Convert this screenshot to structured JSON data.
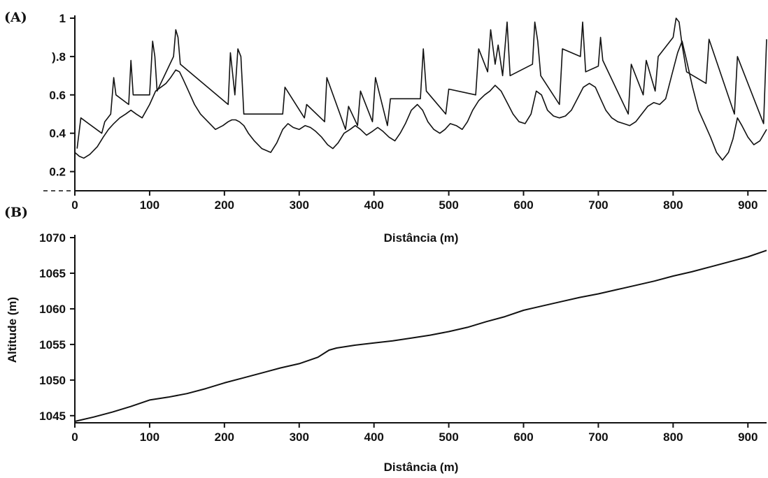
{
  "chart_data": [
    {
      "panel_label": "(A)",
      "type": "line",
      "xlabel": "Distância (m)",
      "ylabel": "",
      "xlim": [
        0,
        925
      ],
      "ylim": [
        0.1,
        1.0
      ],
      "x_ticks": [
        0,
        100,
        200,
        300,
        400,
        500,
        600,
        700,
        800,
        900
      ],
      "y_ticks": [
        0.2,
        0.4,
        0.6,
        0.8,
        1.0
      ],
      "y_tick_labels": [
        "0.2",
        "0.4",
        "0.6",
        ").8",
        "1"
      ],
      "grid": false,
      "series": [
        {
          "color": "#111111",
          "x": [
            0,
            3,
            6,
            12,
            20,
            30,
            38,
            45,
            52,
            60,
            68,
            75,
            82,
            90,
            100,
            108,
            115,
            122,
            128,
            135,
            140,
            145,
            152,
            160,
            168,
            178,
            188,
            198,
            205,
            210,
            215,
            220,
            226,
            232,
            240,
            250,
            262,
            270,
            278,
            285,
            292,
            300,
            308,
            315,
            322,
            330,
            338,
            345,
            352,
            360,
            368,
            375,
            382,
            390,
            398,
            405,
            412,
            420,
            428,
            435,
            442,
            450,
            458,
            465,
            472,
            480,
            488,
            495,
            502,
            510,
            518,
            525,
            532,
            540,
            548,
            555,
            562,
            570,
            578,
            586,
            594,
            602,
            610,
            617,
            624,
            632,
            640,
            648,
            656,
            664,
            672,
            680,
            688,
            696,
            703,
            710,
            718,
            726,
            734,
            742,
            750,
            758,
            766,
            774,
            782,
            790,
            798,
            806,
            812,
            818,
            826,
            834,
            842,
            850,
            858,
            866,
            874,
            880,
            886,
            892,
            900,
            908,
            916,
            925
          ],
          "y": [
            0.3,
            0.29,
            0.28,
            0.27,
            0.29,
            0.33,
            0.38,
            0.42,
            0.45,
            0.48,
            0.5,
            0.52,
            0.5,
            0.48,
            0.55,
            0.62,
            0.64,
            0.66,
            0.69,
            0.73,
            0.72,
            0.68,
            0.62,
            0.55,
            0.5,
            0.46,
            0.42,
            0.44,
            0.46,
            0.47,
            0.47,
            0.46,
            0.44,
            0.4,
            0.36,
            0.32,
            0.3,
            0.35,
            0.42,
            0.45,
            0.43,
            0.42,
            0.44,
            0.43,
            0.41,
            0.38,
            0.34,
            0.32,
            0.35,
            0.4,
            0.42,
            0.44,
            0.42,
            0.39,
            0.41,
            0.43,
            0.41,
            0.38,
            0.36,
            0.4,
            0.45,
            0.52,
            0.55,
            0.52,
            0.46,
            0.42,
            0.4,
            0.42,
            0.45,
            0.44,
            0.42,
            0.46,
            0.52,
            0.57,
            0.6,
            0.62,
            0.65,
            0.62,
            0.56,
            0.5,
            0.46,
            0.45,
            0.5,
            0.62,
            0.6,
            0.52,
            0.49,
            0.48,
            0.49,
            0.52,
            0.58,
            0.64,
            0.66,
            0.64,
            0.58,
            0.52,
            0.48,
            0.46,
            0.45,
            0.44,
            0.46,
            0.5,
            0.54,
            0.56,
            0.55,
            0.58,
            0.7,
            0.82,
            0.88,
            0.78,
            0.64,
            0.52,
            0.45,
            0.38,
            0.3,
            0.26,
            0.3,
            0.37,
            0.48,
            0.44,
            0.38,
            0.34,
            0.36,
            0.42
          ]
        },
        {
          "color": "#111111",
          "x": [
            3,
            8,
            36,
            40,
            48,
            52,
            55,
            72,
            75,
            78,
            100,
            104,
            107,
            110,
            132,
            135,
            138,
            141,
            205,
            208,
            214,
            218,
            222,
            226,
            278,
            281,
            307,
            310,
            334,
            337,
            362,
            366,
            378,
            382,
            398,
            402,
            418,
            422,
            462,
            466,
            470,
            496,
            500,
            536,
            540,
            552,
            556,
            562,
            566,
            572,
            578,
            582,
            612,
            615,
            619,
            623,
            648,
            652,
            676,
            679,
            683,
            700,
            703,
            706,
            740,
            744,
            760,
            764,
            776,
            780,
            800,
            804,
            808,
            812,
            818,
            844,
            848,
            882,
            886,
            921,
            925
          ],
          "y": [
            0.32,
            0.48,
            0.4,
            0.46,
            0.5,
            0.69,
            0.6,
            0.55,
            0.78,
            0.6,
            0.6,
            0.88,
            0.8,
            0.62,
            0.8,
            0.94,
            0.9,
            0.76,
            0.55,
            0.82,
            0.6,
            0.84,
            0.8,
            0.5,
            0.5,
            0.64,
            0.48,
            0.55,
            0.46,
            0.69,
            0.42,
            0.54,
            0.44,
            0.62,
            0.46,
            0.69,
            0.44,
            0.58,
            0.58,
            0.84,
            0.62,
            0.5,
            0.63,
            0.6,
            0.84,
            0.72,
            0.94,
            0.76,
            0.86,
            0.7,
            0.98,
            0.7,
            0.76,
            0.98,
            0.88,
            0.7,
            0.55,
            0.84,
            0.8,
            0.98,
            0.72,
            0.75,
            0.9,
            0.78,
            0.5,
            0.76,
            0.6,
            0.78,
            0.62,
            0.8,
            0.9,
            1.0,
            0.98,
            0.86,
            0.72,
            0.66,
            0.89,
            0.5,
            0.8,
            0.45,
            0.89
          ]
        }
      ]
    },
    {
      "panel_label": "(B)",
      "type": "line",
      "xlabel": "Distância (m)",
      "ylabel": "Altitude (m)",
      "xlim": [
        0,
        925
      ],
      "ylim": [
        1044,
        1070
      ],
      "x_ticks": [
        0,
        100,
        200,
        300,
        400,
        500,
        600,
        700,
        800,
        900
      ],
      "y_ticks": [
        1045,
        1050,
        1055,
        1060,
        1065,
        1070
      ],
      "grid": false,
      "series": [
        {
          "color": "#111111",
          "x": [
            0,
            25,
            50,
            75,
            100,
            125,
            150,
            175,
            200,
            225,
            250,
            275,
            300,
            325,
            340,
            350,
            375,
            400,
            425,
            450,
            475,
            500,
            525,
            550,
            575,
            600,
            625,
            650,
            675,
            700,
            725,
            750,
            775,
            800,
            825,
            850,
            875,
            900,
            925
          ],
          "y": [
            1044.2,
            1044.8,
            1045.5,
            1046.3,
            1047.2,
            1047.6,
            1048.1,
            1048.8,
            1049.6,
            1050.3,
            1051.0,
            1051.7,
            1052.3,
            1053.2,
            1054.2,
            1054.5,
            1054.9,
            1055.2,
            1055.5,
            1055.9,
            1056.3,
            1056.8,
            1057.4,
            1058.2,
            1058.9,
            1059.8,
            1060.4,
            1061.0,
            1061.6,
            1062.1,
            1062.7,
            1063.3,
            1063.9,
            1064.6,
            1065.2,
            1065.9,
            1066.6,
            1067.3,
            1068.2
          ]
        }
      ]
    }
  ]
}
